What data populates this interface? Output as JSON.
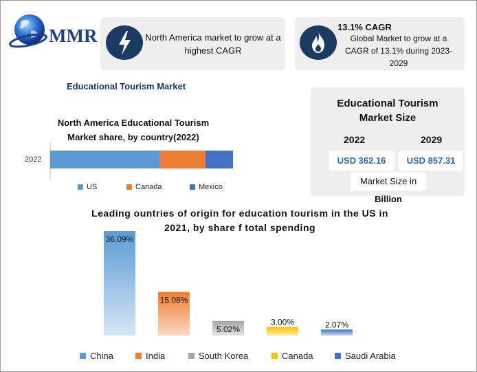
{
  "logo": {
    "text": "MMR"
  },
  "card1": {
    "text": "North America market to grow at a highest CAGR",
    "icon": "lightning-bolt-icon"
  },
  "card2": {
    "heading": "13.1% CAGR",
    "text": "Global Market to grow at a CAGR of 13.1% during 2023-2029",
    "icon": "flame-icon"
  },
  "main_title": "Educational Tourism Market",
  "market_size": {
    "title": "Educational Tourism Market Size",
    "year1": "2022",
    "year2": "2029",
    "value1": "USD 362.16",
    "value2": "USD 857.31",
    "unit_prefix": "Market Size in ",
    "unit_bold": "Billion"
  },
  "colors": {
    "us": "#5b9bd5",
    "canada": "#ed7d31",
    "mexico": "#4472c4",
    "china": "#5b9bd5",
    "india": "#ed7d31",
    "south_korea": "#a5a5a5",
    "canada2": "#ffc000",
    "saudi": "#4472c4",
    "navy": "#1d3a63"
  },
  "chart_data": [
    {
      "type": "bar",
      "orientation": "horizontal-stacked",
      "title": "North America Educational Tourism Market share, by country(2022)",
      "categories": [
        "2022"
      ],
      "series": [
        {
          "name": "US",
          "values": [
            60
          ]
        },
        {
          "name": "Canada",
          "values": [
            25
          ]
        },
        {
          "name": "Mexico",
          "values": [
            15
          ]
        }
      ],
      "legend": "bottom",
      "grid": false
    },
    {
      "type": "bar",
      "title": "Leading ountries of origin for education tourism in the US in 2021, by share f total spending",
      "categories": [
        "China",
        "India",
        "South Korea",
        "Canada",
        "Saudi Arabia"
      ],
      "values": [
        36.09,
        15.08,
        5.02,
        3.0,
        2.07
      ],
      "labels": [
        "36.09%",
        "15.08%",
        "5.02%",
        "3.00%",
        "2.07%"
      ],
      "legend": "bottom",
      "grid": false
    }
  ]
}
